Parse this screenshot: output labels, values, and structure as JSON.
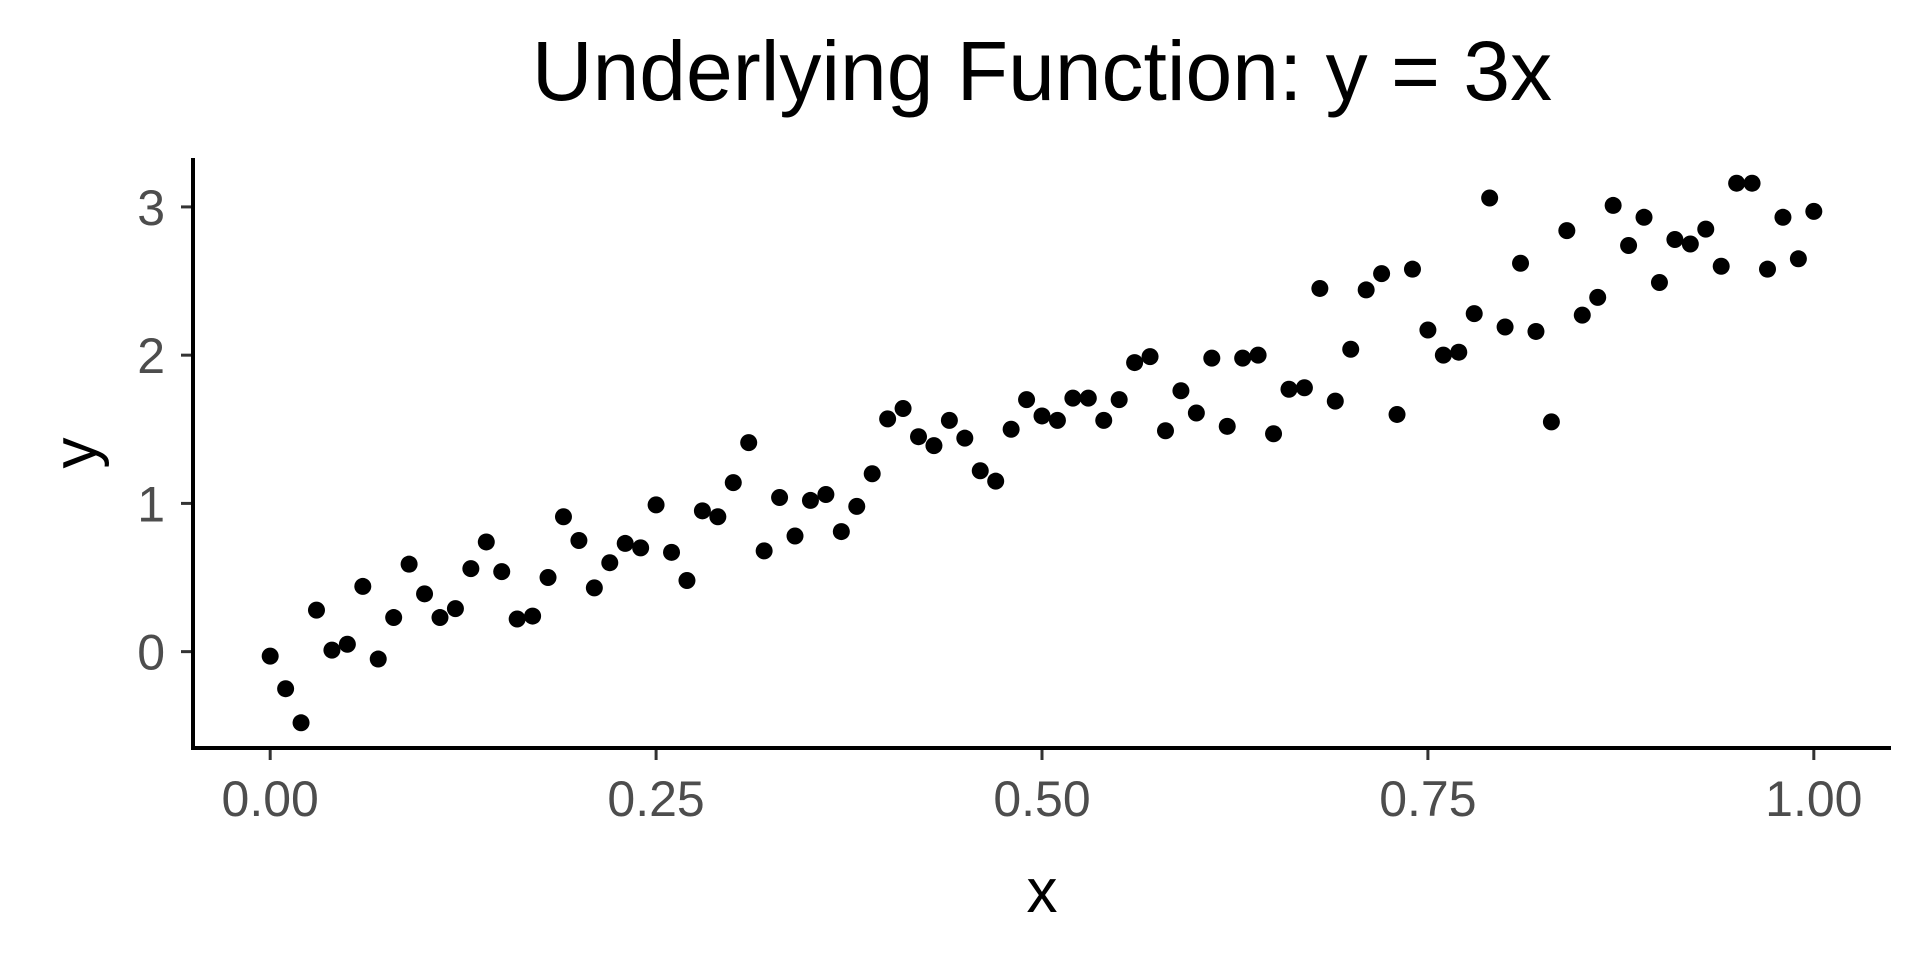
{
  "chart_data": {
    "type": "scatter",
    "title": "Underlying Function: y = 3x",
    "xlabel": "x",
    "ylabel": "y",
    "xlim": [
      -0.05,
      1.05
    ],
    "ylim": [
      -0.65,
      3.33
    ],
    "x_ticks": [
      0.0,
      0.25,
      0.5,
      0.75,
      1.0
    ],
    "x_tick_labels": [
      "0.00",
      "0.25",
      "0.50",
      "0.75",
      "1.00"
    ],
    "y_ticks": [
      0,
      1,
      2,
      3
    ],
    "y_tick_labels": [
      "0",
      "1",
      "2",
      "3"
    ],
    "grid": false,
    "legend": "none",
    "point_color": "#000000",
    "series": [
      {
        "x": [
          0.0,
          0.01,
          0.02,
          0.03,
          0.04,
          0.05,
          0.06,
          0.07,
          0.08,
          0.09,
          0.1,
          0.11,
          0.12,
          0.13,
          0.14,
          0.15,
          0.16,
          0.17,
          0.18,
          0.19,
          0.2,
          0.21,
          0.22,
          0.23,
          0.24,
          0.25,
          0.26,
          0.27,
          0.28,
          0.29,
          0.3,
          0.31,
          0.32,
          0.33,
          0.34,
          0.35,
          0.36,
          0.37,
          0.38,
          0.39,
          0.4,
          0.41,
          0.42,
          0.43,
          0.44,
          0.45,
          0.46,
          0.47,
          0.48,
          0.49,
          0.5,
          0.51,
          0.52,
          0.53,
          0.54,
          0.55,
          0.56,
          0.57,
          0.58,
          0.59,
          0.6,
          0.61,
          0.62,
          0.63,
          0.64,
          0.65,
          0.66,
          0.67,
          0.68,
          0.69,
          0.7,
          0.71,
          0.72,
          0.73,
          0.74,
          0.75,
          0.76,
          0.77,
          0.78,
          0.79,
          0.8,
          0.81,
          0.82,
          0.83,
          0.84,
          0.85,
          0.86,
          0.87,
          0.88,
          0.89,
          0.9,
          0.91,
          0.92,
          0.93,
          0.94,
          0.95,
          0.96,
          0.97,
          0.98,
          0.99,
          1.0
        ],
        "y": [
          -0.03,
          -0.25,
          -0.48,
          0.28,
          0.01,
          0.05,
          0.44,
          -0.05,
          0.23,
          0.59,
          0.39,
          0.23,
          0.29,
          0.56,
          0.74,
          0.54,
          0.22,
          0.24,
          0.5,
          0.91,
          0.75,
          0.43,
          0.6,
          0.73,
          0.7,
          0.99,
          0.67,
          0.48,
          0.95,
          0.91,
          1.14,
          1.41,
          0.68,
          1.04,
          0.78,
          1.02,
          1.06,
          0.81,
          0.98,
          1.2,
          1.57,
          1.64,
          1.45,
          1.39,
          1.56,
          1.44,
          1.22,
          1.15,
          1.5,
          1.7,
          1.59,
          1.56,
          1.71,
          1.71,
          1.56,
          1.7,
          1.95,
          1.99,
          1.49,
          1.76,
          1.61,
          1.98,
          1.52,
          1.98,
          2.0,
          1.47,
          1.77,
          1.78,
          2.45,
          1.69,
          2.04,
          2.44,
          2.55,
          1.6,
          2.58,
          2.17,
          2.0,
          2.02,
          2.28,
          3.06,
          2.19,
          2.62,
          2.16,
          1.55,
          2.84,
          2.27,
          2.39,
          3.01,
          2.74,
          2.93,
          2.49,
          2.78,
          2.75,
          2.85,
          2.6,
          3.16,
          3.16,
          2.58,
          2.93,
          2.65,
          2.97
        ]
      }
    ]
  }
}
